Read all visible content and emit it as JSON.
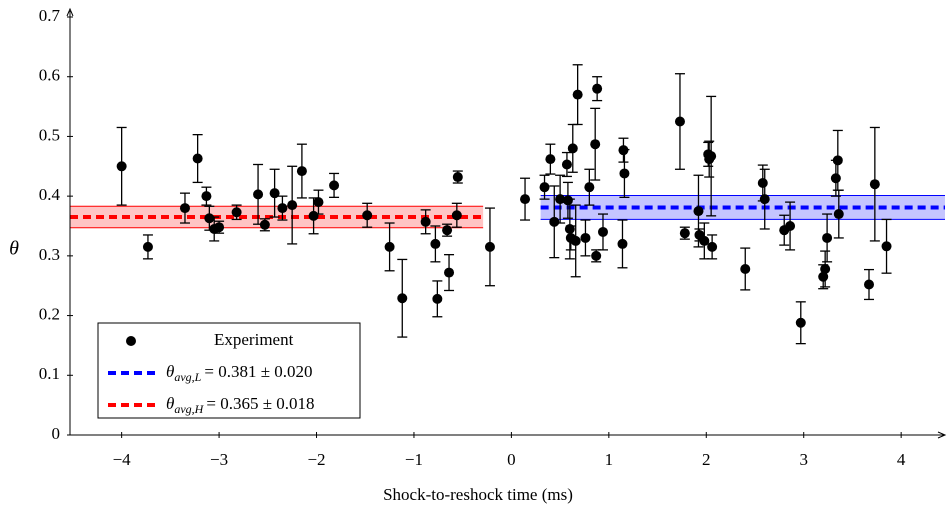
{
  "chart_data": {
    "type": "scatter",
    "xlabel": "Shock-to-reshock time (ms)",
    "ylabel": "θ",
    "xlim": [
      -4.53,
      4.45
    ],
    "ylim": [
      0,
      0.7
    ],
    "xticks": [
      -4,
      -3,
      -2,
      -1,
      0,
      1,
      2,
      3,
      4
    ],
    "yticks": [
      0,
      0.1,
      0.2,
      0.3,
      0.4,
      0.5,
      0.6,
      0.7
    ],
    "series": [
      {
        "name": "Experiment",
        "color": "#000000",
        "x": [
          -4.0,
          -3.73,
          -3.35,
          -3.22,
          -3.13,
          -3.1,
          -3.05,
          -3.0,
          -2.82,
          -2.6,
          -2.53,
          -2.43,
          -2.35,
          -2.25,
          -2.15,
          -2.03,
          -1.98,
          -1.82,
          -1.48,
          -1.25,
          -1.12,
          -0.88,
          -0.78,
          -0.76,
          -0.66,
          -0.64,
          -0.56,
          -0.55,
          -0.22,
          0.14,
          0.34,
          0.4,
          0.44,
          0.5,
          0.57,
          0.58,
          0.6,
          0.61,
          0.63,
          0.66,
          0.68,
          0.76,
          0.8,
          0.86,
          0.87,
          0.88,
          0.94,
          1.15,
          1.16,
          1.14,
          1.73,
          1.78,
          1.92,
          1.93,
          1.98,
          2.02,
          2.03,
          2.05,
          2.06,
          2.4,
          2.58,
          2.6,
          2.8,
          2.86,
          2.97,
          3.2,
          3.22,
          3.24,
          3.33,
          3.35,
          3.36,
          3.67,
          3.73,
          3.85
        ],
        "values": [
          0.45,
          0.315,
          0.38,
          0.463,
          0.4,
          0.363,
          0.345,
          0.348,
          0.373,
          0.403,
          0.352,
          0.405,
          0.38,
          0.385,
          0.442,
          0.367,
          0.39,
          0.418,
          0.368,
          0.315,
          0.229,
          0.357,
          0.32,
          0.228,
          0.343,
          0.272,
          0.368,
          0.432,
          0.315,
          0.395,
          0.415,
          0.462,
          0.357,
          0.395,
          0.453,
          0.393,
          0.345,
          0.33,
          0.48,
          0.325,
          0.57,
          0.33,
          0.415,
          0.487,
          0.3,
          0.58,
          0.34,
          0.477,
          0.438,
          0.32,
          0.525,
          0.338,
          0.375,
          0.335,
          0.325,
          0.47,
          0.462,
          0.467,
          0.315,
          0.278,
          0.422,
          0.395,
          0.343,
          0.35,
          0.188,
          0.265,
          0.278,
          0.33,
          0.43,
          0.46,
          0.37,
          0.252,
          0.42,
          0.316
        ],
        "errors": [
          0.065,
          0.02,
          0.025,
          0.04,
          0.015,
          0.02,
          0.02,
          0.01,
          0.012,
          0.05,
          0.01,
          0.04,
          0.02,
          0.065,
          0.045,
          0.03,
          0.02,
          0.02,
          0.02,
          0.04,
          0.065,
          0.02,
          0.03,
          0.03,
          0.01,
          0.03,
          0.02,
          0.01,
          0.065,
          0.035,
          0.02,
          0.025,
          0.06,
          0.04,
          0.02,
          0.03,
          0.05,
          0.02,
          0.04,
          0.06,
          0.05,
          0.03,
          0.03,
          0.06,
          0.01,
          0.02,
          0.03,
          0.02,
          0.04,
          0.04,
          0.08,
          0.01,
          0.06,
          0.01,
          0.03,
          0.02,
          0.03,
          0.1,
          0.02,
          0.035,
          0.03,
          0.05,
          0.025,
          0.04,
          0.035,
          0.02,
          0.03,
          0.04,
          0.03,
          0.05,
          0.04,
          0.025,
          0.095,
          0.045
        ]
      }
    ],
    "averages": [
      {
        "symbol": "θ",
        "subscript": "avg,L",
        "label": "= 0.381 ± 0.020",
        "color": "#0000ff",
        "band_color": "#3a3aff",
        "mean": 0.381,
        "error": 0.02,
        "x_range": [
          0.3,
          4.45
        ]
      },
      {
        "symbol": "θ",
        "subscript": "avg,H",
        "label": "= 0.365 ± 0.018",
        "color": "#ff0000",
        "band_color": "#ff3a3a",
        "mean": 0.365,
        "error": 0.018,
        "x_range": [
          -4.53,
          -0.29
        ]
      }
    ]
  }
}
